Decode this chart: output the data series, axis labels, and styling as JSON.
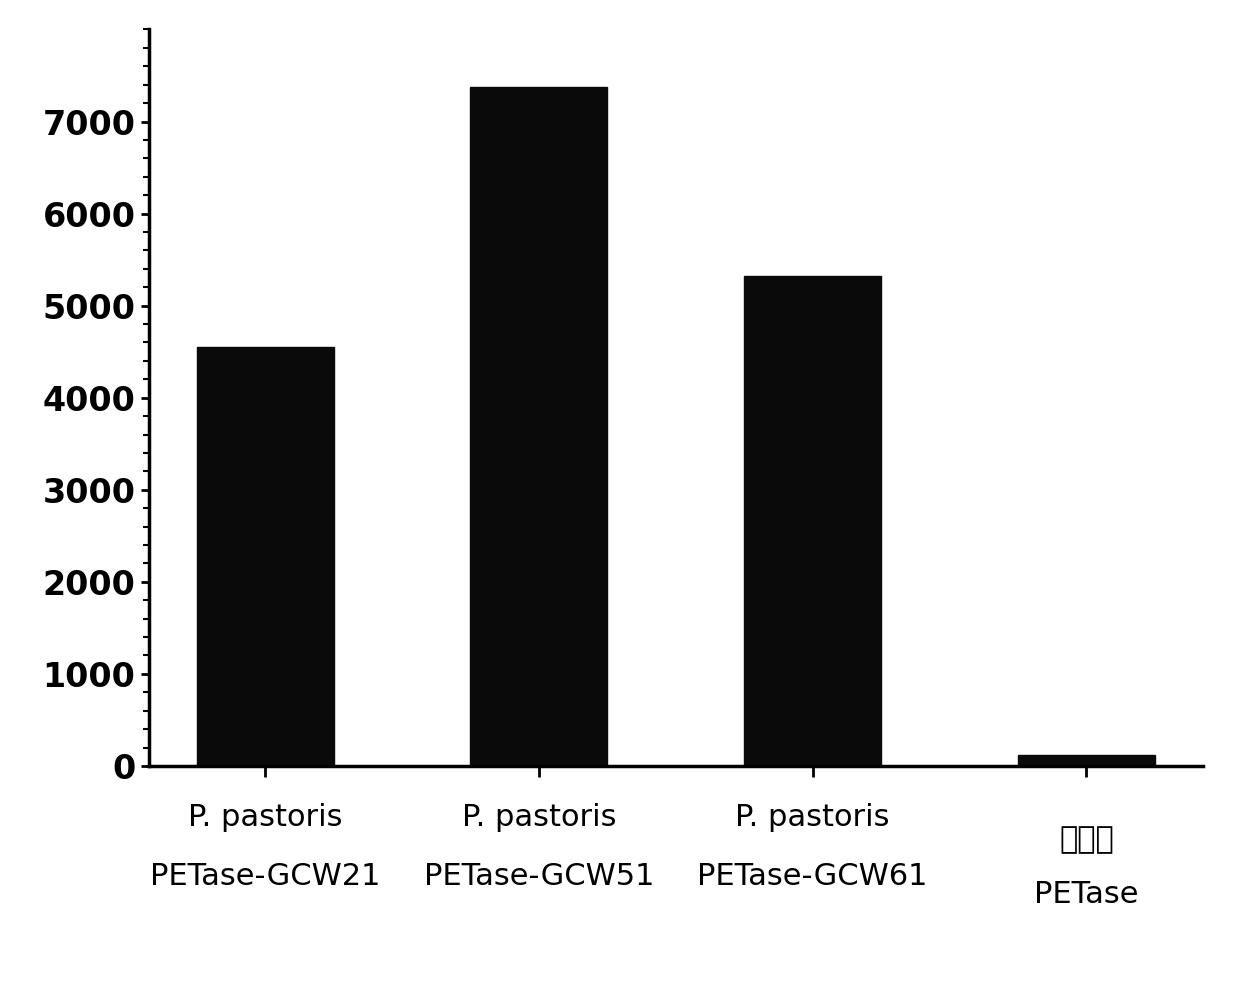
{
  "categories": [
    "P. pastoris\nPETase-GCW21",
    "P. pastoris\nPETase-GCW51",
    "P. pastoris\nPETase-GCW61",
    "野生型\nPETase"
  ],
  "values": [
    4550,
    7380,
    5320,
    120
  ],
  "bar_color": "#0a0a0a",
  "background_color": "#ffffff",
  "ylim": [
    0,
    8000
  ],
  "yticks": [
    0,
    1000,
    2000,
    3000,
    4000,
    5000,
    6000,
    7000
  ],
  "bar_width": 0.5,
  "tick_fontsize": 24,
  "label_fontsize": 22
}
